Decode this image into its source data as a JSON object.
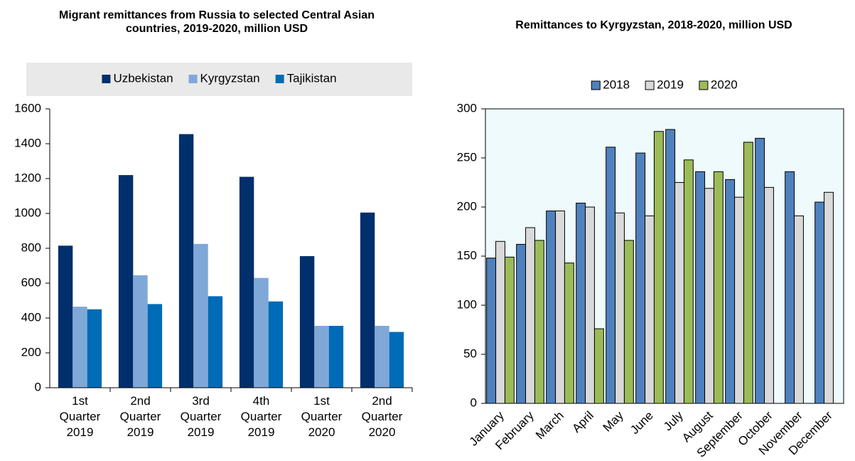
{
  "chart_data": [
    {
      "type": "bar",
      "title": "Migrant remittances from Russia to selected Central Asian countries, 2019-2020, million USD",
      "categories": [
        "1st Quarter 2019",
        "2nd Quarter 2019",
        "3rd Quarter 2019",
        "4th Quarter 2019",
        "1st Quarter 2020",
        "2nd Quarter 2020"
      ],
      "series": [
        {
          "name": "Uzbekistan",
          "color": "#002f6c",
          "values": [
            815,
            1220,
            1455,
            1210,
            755,
            1005
          ]
        },
        {
          "name": "Kyrgyzstan",
          "color": "#7fa8d9",
          "values": [
            465,
            645,
            825,
            630,
            355,
            355
          ]
        },
        {
          "name": "Tajikistan",
          "color": "#006bb6",
          "values": [
            450,
            480,
            525,
            495,
            355,
            320
          ]
        }
      ],
      "ylim": [
        0,
        1600
      ],
      "yticks": [
        0,
        200,
        400,
        600,
        800,
        1000,
        1200,
        1400,
        1600
      ],
      "grid": false,
      "legend_position": "top"
    },
    {
      "type": "bar",
      "title": "Remittances to Kyrgyzstan, 2018-2020, million USD",
      "categories": [
        "January",
        "February",
        "March",
        "April",
        "May",
        "June",
        "July",
        "August",
        "September",
        "October",
        "November",
        "December"
      ],
      "series": [
        {
          "name": "2018",
          "color": "#4f81bd",
          "values": [
            148,
            162,
            196,
            204,
            261,
            255,
            279,
            236,
            228,
            270,
            236,
            205
          ]
        },
        {
          "name": "2019",
          "color": "#d9d9d9",
          "values": [
            165,
            179,
            196,
            200,
            194,
            191,
            225,
            219,
            210,
            220,
            191,
            215
          ]
        },
        {
          "name": "2020",
          "color": "#9bbb59",
          "values": [
            149,
            166,
            143,
            76,
            166,
            277,
            248,
            236,
            266,
            null,
            null,
            null
          ]
        }
      ],
      "ylim": [
        0,
        300
      ],
      "yticks": [
        0,
        50,
        100,
        150,
        200,
        250,
        300
      ],
      "grid": false,
      "legend_position": "top"
    }
  ]
}
